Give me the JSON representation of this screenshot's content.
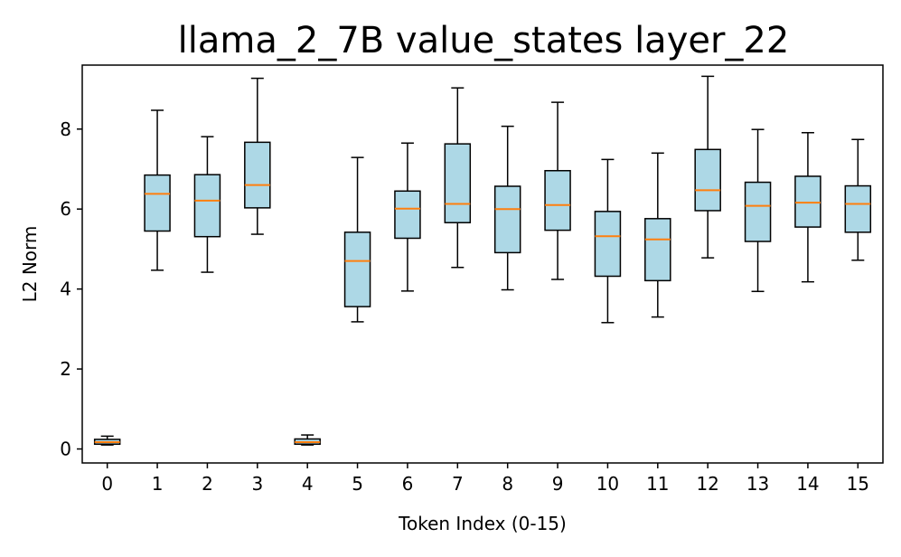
{
  "chart_data": {
    "type": "boxplot",
    "title": "llama_2_7B value_states layer_22",
    "xlabel": "Token Index (0-15)",
    "ylabel": "L2 Norm",
    "ylim": [
      -0.35,
      9.6
    ],
    "yticks": [
      0,
      2,
      4,
      6,
      8
    ],
    "categories": [
      "0",
      "1",
      "2",
      "3",
      "4",
      "5",
      "6",
      "7",
      "8",
      "9",
      "10",
      "11",
      "12",
      "13",
      "14",
      "15"
    ],
    "boxes": [
      {
        "whislo": 0.1,
        "q1": 0.12,
        "med": 0.17,
        "q3": 0.24,
        "whishi": 0.32
      },
      {
        "whislo": 4.47,
        "q1": 5.45,
        "med": 6.38,
        "q3": 6.85,
        "whishi": 8.47
      },
      {
        "whislo": 4.42,
        "q1": 5.31,
        "med": 6.21,
        "q3": 6.86,
        "whishi": 7.81
      },
      {
        "whislo": 5.37,
        "q1": 6.03,
        "med": 6.6,
        "q3": 7.67,
        "whishi": 9.27
      },
      {
        "whislo": 0.1,
        "q1": 0.12,
        "med": 0.17,
        "q3": 0.25,
        "whishi": 0.35
      },
      {
        "whislo": 3.18,
        "q1": 3.56,
        "med": 4.7,
        "q3": 5.42,
        "whishi": 7.29
      },
      {
        "whislo": 3.95,
        "q1": 5.27,
        "med": 6.01,
        "q3": 6.45,
        "whishi": 7.65
      },
      {
        "whislo": 4.54,
        "q1": 5.66,
        "med": 6.13,
        "q3": 7.63,
        "whishi": 9.03
      },
      {
        "whislo": 3.98,
        "q1": 4.91,
        "med": 6.0,
        "q3": 6.57,
        "whishi": 8.07
      },
      {
        "whislo": 4.24,
        "q1": 5.47,
        "med": 6.1,
        "q3": 6.96,
        "whishi": 8.67
      },
      {
        "whislo": 3.16,
        "q1": 4.32,
        "med": 5.32,
        "q3": 5.94,
        "whishi": 7.24
      },
      {
        "whislo": 3.3,
        "q1": 4.21,
        "med": 5.24,
        "q3": 5.76,
        "whishi": 7.4
      },
      {
        "whislo": 4.78,
        "q1": 5.96,
        "med": 6.47,
        "q3": 7.49,
        "whishi": 9.32
      },
      {
        "whislo": 3.94,
        "q1": 5.19,
        "med": 6.08,
        "q3": 6.67,
        "whishi": 7.99
      },
      {
        "whislo": 4.18,
        "q1": 5.55,
        "med": 6.16,
        "q3": 6.82,
        "whishi": 7.91
      },
      {
        "whislo": 4.72,
        "q1": 5.42,
        "med": 6.13,
        "q3": 6.58,
        "whishi": 7.74
      }
    ],
    "box_fill": "#add8e6",
    "median_color": "#ff7f0e",
    "edge_color": "#000000",
    "grid": false,
    "legend": "none"
  }
}
